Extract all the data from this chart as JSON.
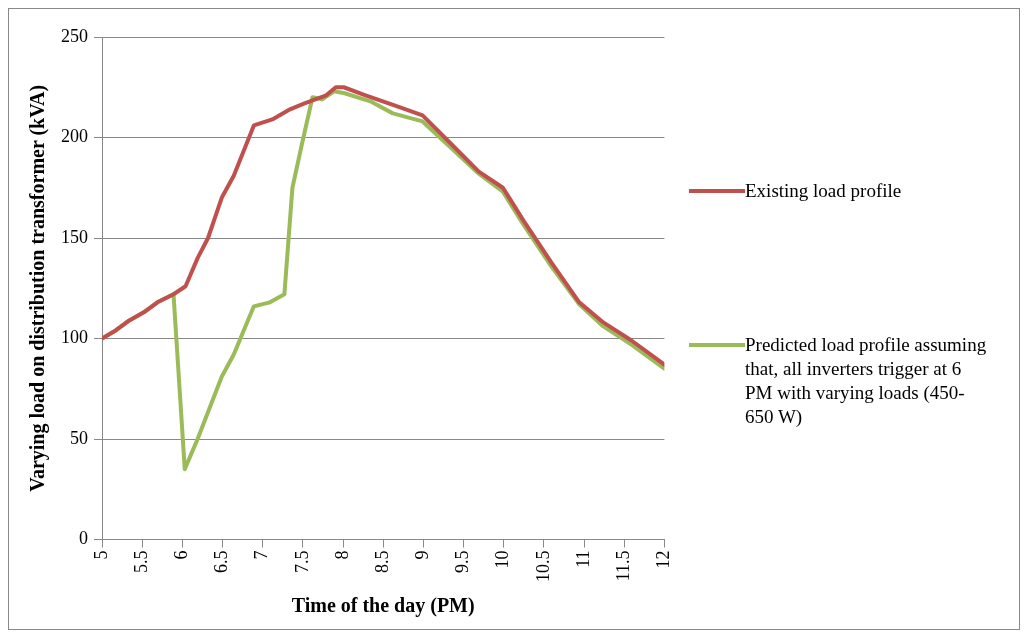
{
  "chart_data": {
    "type": "line",
    "xlabel": "Time of the day (PM)",
    "ylabel": "Varying load on distribution transformer (kVA)",
    "xlim": [
      5,
      12
    ],
    "xticks": [
      5,
      5.5,
      6,
      6.5,
      7,
      7.5,
      8,
      8.5,
      9,
      9.5,
      10,
      10.5,
      11,
      11.5,
      12
    ],
    "ylim": [
      0,
      250
    ],
    "yticks": [
      0,
      50,
      100,
      150,
      200,
      250
    ],
    "grid": "y",
    "legend": "right",
    "marker": "none",
    "line_style": "solid",
    "series": [
      {
        "name": "Existing load profile",
        "color": "#c0504d",
        "x": [
          5,
          5.17,
          5.34,
          5.52,
          5.69,
          5.89,
          6.04,
          6.19,
          6.32,
          6.49,
          6.64,
          6.89,
          7.12,
          7.34,
          7.52,
          7.79,
          7.91,
          8.01,
          8.28,
          8.64,
          8.99,
          9.34,
          9.69,
          9.99,
          10.24,
          10.59,
          10.94,
          11.24,
          11.59,
          12
        ],
        "values": [
          100,
          104,
          109,
          113,
          118,
          122,
          126,
          140,
          150,
          170,
          181,
          206,
          209,
          214,
          217,
          221,
          225,
          225,
          221,
          216,
          211,
          197,
          183,
          175,
          159,
          138,
          118,
          108,
          99,
          87
        ]
      },
      {
        "name": "Predicted load profile assuming that, all inverters trigger at 6 PM with varying loads (450-650 W)",
        "color": "#9bbb59",
        "x": [
          5,
          5.17,
          5.34,
          5.52,
          5.69,
          5.89,
          6.03,
          6.19,
          6.49,
          6.64,
          6.89,
          7.09,
          7.27,
          7.37,
          7.49,
          7.62,
          7.74,
          7.89,
          8.02,
          8.34,
          8.62,
          8.99,
          9.34,
          9.69,
          9.99,
          10.24,
          10.59,
          10.94,
          11.24,
          11.59,
          12
        ],
        "values": [
          100,
          104,
          109,
          113,
          118,
          122,
          35,
          50,
          81,
          92,
          116,
          118,
          122,
          175,
          197,
          220,
          219,
          223,
          222,
          218,
          212,
          208,
          195,
          182,
          173,
          157,
          136,
          117,
          106,
          97,
          85
        ]
      }
    ]
  }
}
